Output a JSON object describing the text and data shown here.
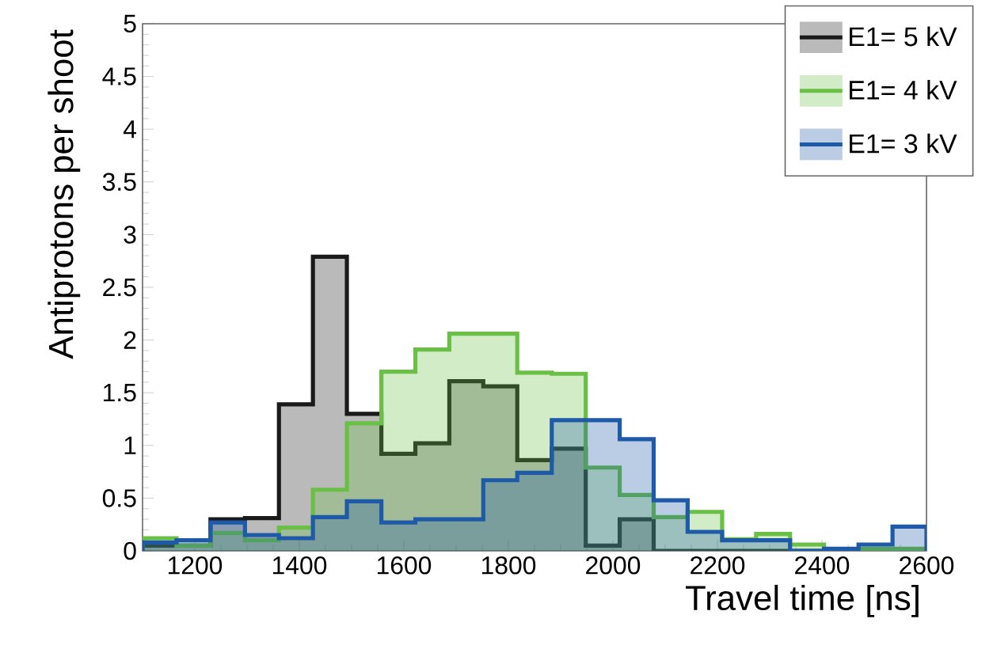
{
  "chart_data": {
    "type": "histogram",
    "xlabel": "Travel time [ns]",
    "ylabel": "Antiprotons per shoot",
    "bins": [
      1100,
      1165,
      1230,
      1296,
      1361,
      1426,
      1491,
      1557,
      1622,
      1687,
      1752,
      1817,
      1883,
      1948,
      2013,
      2078,
      2143,
      2209,
      2274,
      2339,
      2404,
      2470,
      2535,
      2600
    ],
    "series": [
      {
        "name": "E1= 5 kV",
        "color": "#1a1a1a",
        "values": [
          0.05,
          0.05,
          0.3,
          0.31,
          1.39,
          2.79,
          1.3,
          0.92,
          1.02,
          1.61,
          1.56,
          0.86,
          0.97,
          0.05,
          0.3,
          0,
          0,
          0,
          0,
          0,
          0,
          0,
          0
        ]
      },
      {
        "name": "E1= 4 kV",
        "color": "#6abf45",
        "values": [
          0.12,
          0.05,
          0.17,
          0.1,
          0.22,
          0.58,
          1.21,
          1.7,
          1.91,
          2.06,
          2.06,
          1.69,
          1.68,
          0.79,
          0.53,
          0.32,
          0.37,
          0.11,
          0.16,
          0.06,
          0,
          0.02,
          0.02
        ]
      },
      {
        "name": "E1= 3 kV",
        "color": "#1f5aa8",
        "values": [
          0.08,
          0.1,
          0.27,
          0.15,
          0.12,
          0.32,
          0.47,
          0.27,
          0.3,
          0.3,
          0.67,
          0.74,
          1.24,
          1.24,
          1.06,
          0.48,
          0.18,
          0.1,
          0.1,
          0,
          0.02,
          0.06,
          0.23
        ]
      }
    ],
    "xlim": [
      1100,
      2600
    ],
    "ylim": [
      0,
      5
    ],
    "xticks": [
      1200,
      1400,
      1600,
      1800,
      2000,
      2200,
      2400,
      2600
    ],
    "yticks": [
      0,
      0.5,
      1,
      1.5,
      2,
      2.5,
      3,
      3.5,
      4,
      4.5,
      5
    ],
    "legend": "top right",
    "grid": false
  }
}
